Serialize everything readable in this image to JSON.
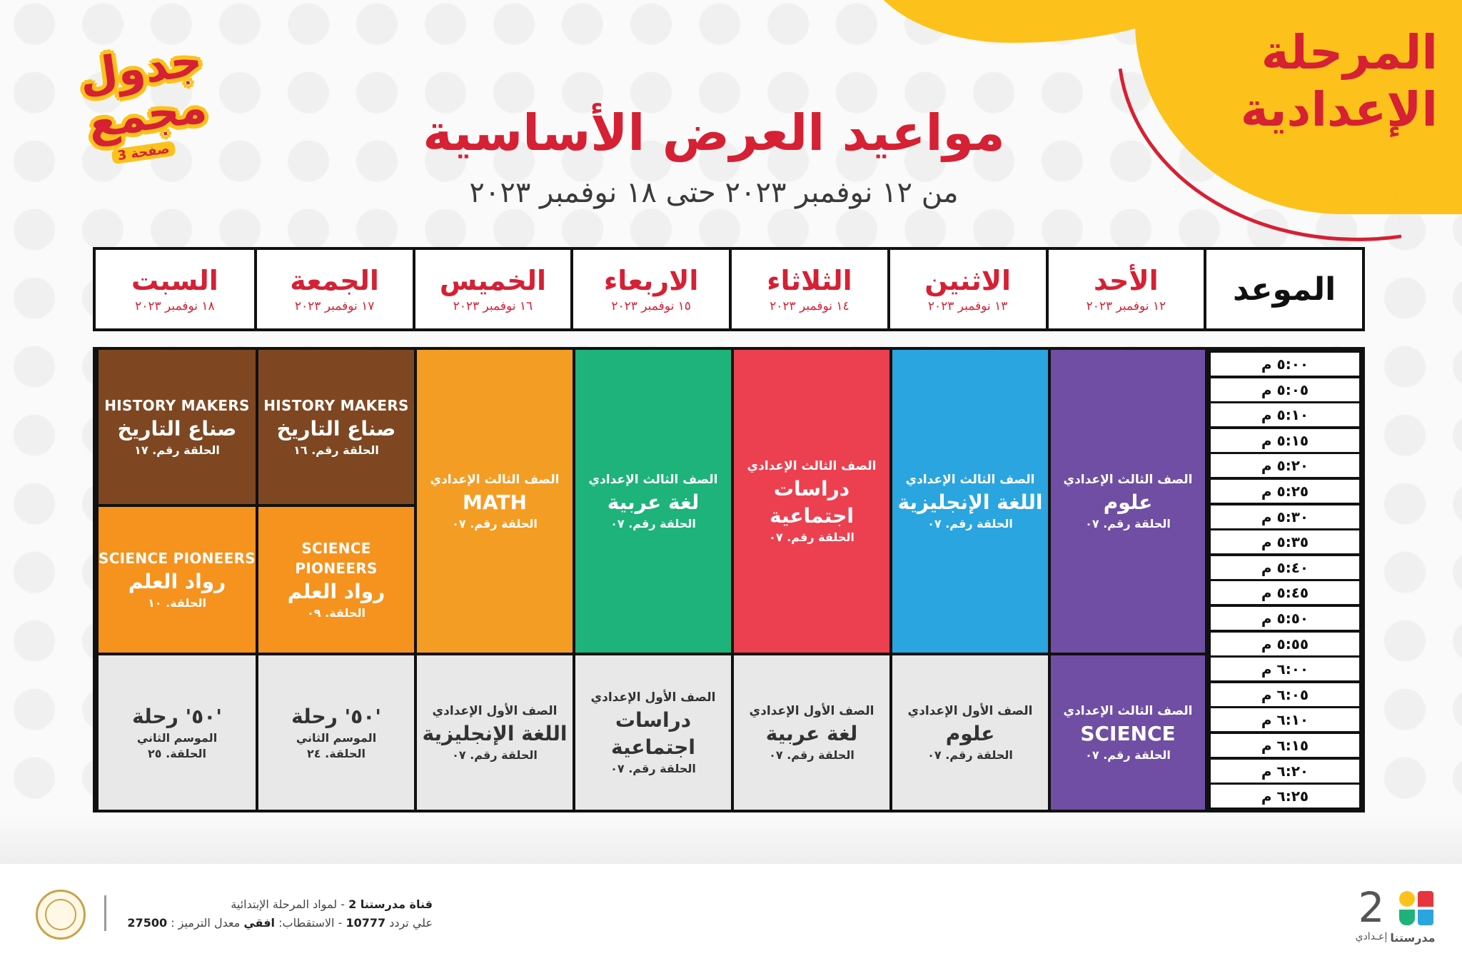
{
  "page": {
    "stage_title_line1": "المرحلة",
    "stage_title_line2": "الإعدادية",
    "badge_line1": "جدول",
    "badge_line2": "مجمع",
    "badge_page": "صفحة 3",
    "title": "مواعيد العرض الأساسية",
    "subtitle": "من ١٢ نوفمبر ٢٠٢٣ حتى ١٨ نوفمبر ٢٠٢٣"
  },
  "header": {
    "time_label": "الموعد",
    "days": [
      {
        "day": "الأحد",
        "date": "١٢ نوفمبر ٢٠٢٣"
      },
      {
        "day": "الاثنين",
        "date": "١٣ نوفمبر ٢٠٢٣"
      },
      {
        "day": "الثلاثاء",
        "date": "١٤ نوفمبر ٢٠٢٣"
      },
      {
        "day": "الاربعاء",
        "date": "١٥ نوفمبر ٢٠٢٣"
      },
      {
        "day": "الخميس",
        "date": "١٦ نوفمبر ٢٠٢٣"
      },
      {
        "day": "الجمعة",
        "date": "١٧ نوفمبر ٢٠٢٣"
      },
      {
        "day": "السبت",
        "date": "١٨ نوفمبر ٢٠٢٣"
      }
    ]
  },
  "times": [
    "٥:٠٠ م",
    "٥:٠٥ م",
    "٥:١٠ م",
    "٥:١٥ م",
    "٥:٢٠ م",
    "٥:٢٥ م",
    "٥:٣٠ م",
    "٥:٣٥ م",
    "٥:٤٠ م",
    "٥:٤٥ م",
    "٥:٥٠ م",
    "٥:٥٥ م",
    "٦:٠٠ م",
    "٦:٠٥ م",
    "٦:١٠ م",
    "٦:١٥ م",
    "٦:٢٠ م",
    "٦:٢٥ م"
  ],
  "schedule": {
    "sun": {
      "first": {
        "grade": "الصف الثالث الإعدادي",
        "subject": "علوم",
        "ep": "الحلقة رقم. ٠٧",
        "color": "#6f4ea3"
      },
      "second": {
        "grade": "الصف الثالث الإعدادي",
        "subject": "SCIENCE",
        "ep": "الحلقة رقم. ٠٧",
        "color": "#6f4ea3"
      }
    },
    "mon": {
      "first": {
        "grade": "الصف الثالث الإعدادي",
        "subject": "اللغة الإنجليزية",
        "ep": "الحلقة رقم. ٠٧",
        "color": "#2aa5e0"
      },
      "second": {
        "grade": "الصف الأول الإعدادي",
        "subject": "علوم",
        "ep": "الحلقة رقم. ٠٧"
      }
    },
    "tue": {
      "first": {
        "grade": "الصف الثالث الإعدادي",
        "subject": "دراسات اجتماعية",
        "ep": "الحلقة رقم. ٠٧",
        "color": "#ec4050"
      },
      "second": {
        "grade": "الصف الأول الإعدادي",
        "subject": "لغة عربية",
        "ep": "الحلقة رقم. ٠٧"
      }
    },
    "wed": {
      "first": {
        "grade": "الصف الثالث الإعدادي",
        "subject": "لغة عربية",
        "ep": "الحلقة رقم. ٠٧",
        "color": "#1db37a"
      },
      "second": {
        "grade": "الصف الأول الإعدادي",
        "subject": "دراسات اجتماعية",
        "ep": "الحلقة رقم. ٠٧"
      }
    },
    "thu": {
      "first": {
        "grade": "الصف الثالث الإعدادي",
        "subject": "MATH",
        "ep": "الحلقة رقم. ٠٧",
        "color": "#f49d24"
      },
      "second": {
        "grade": "الصف الأول الإعدادي",
        "subject": "اللغة الإنجليزية",
        "ep": "الحلقة رقم. ٠٧"
      }
    },
    "fri": {
      "history": {
        "en": "HISTORY MAKERS",
        "subject": "صناع التاريخ",
        "ep": "الحلقة رقم. ١٦",
        "color": "#7e4721"
      },
      "science": {
        "en": "SCIENCE PIONEERS",
        "subject": "رواد العلم",
        "ep": "الحلقة. ٠٩",
        "color": "#f6921e"
      },
      "trip": {
        "subject": "'٥٠' رحلة",
        "season": "الموسم الثاني",
        "ep": "الحلقة. ٢٤"
      }
    },
    "sat": {
      "history": {
        "en": "HISTORY MAKERS",
        "subject": "صناع التاريخ",
        "ep": "الحلقة رقم. ١٧",
        "color": "#7e4721"
      },
      "science": {
        "en": "SCIENCE PIONEERS",
        "subject": "رواد العلم",
        "ep": "الحلقة. ١٠",
        "color": "#f6921e"
      },
      "trip": {
        "subject": "'٥٠' رحلة",
        "season": "الموسم الثاني",
        "ep": "الحلقة. ٢٥"
      }
    }
  },
  "footer": {
    "channel_name": "قناة مدرستنا 2",
    "channel_desc": "- لمواد المرحلة الإبتدائية",
    "freq_label": "علي تردد",
    "freq_value": "10777",
    "pol_label": "- الاستقطاب:",
    "pol_value": "افقي",
    "rate_label": "معدل الترميز :",
    "rate_value": "27500",
    "logo_number": "2",
    "logo_sub": "إعـدادي",
    "logo_name": "مدرستنا"
  },
  "colors": {
    "brand_red": "#d62033",
    "brand_yellow": "#fcc21b",
    "gray_cell": "#e8e8e8"
  }
}
